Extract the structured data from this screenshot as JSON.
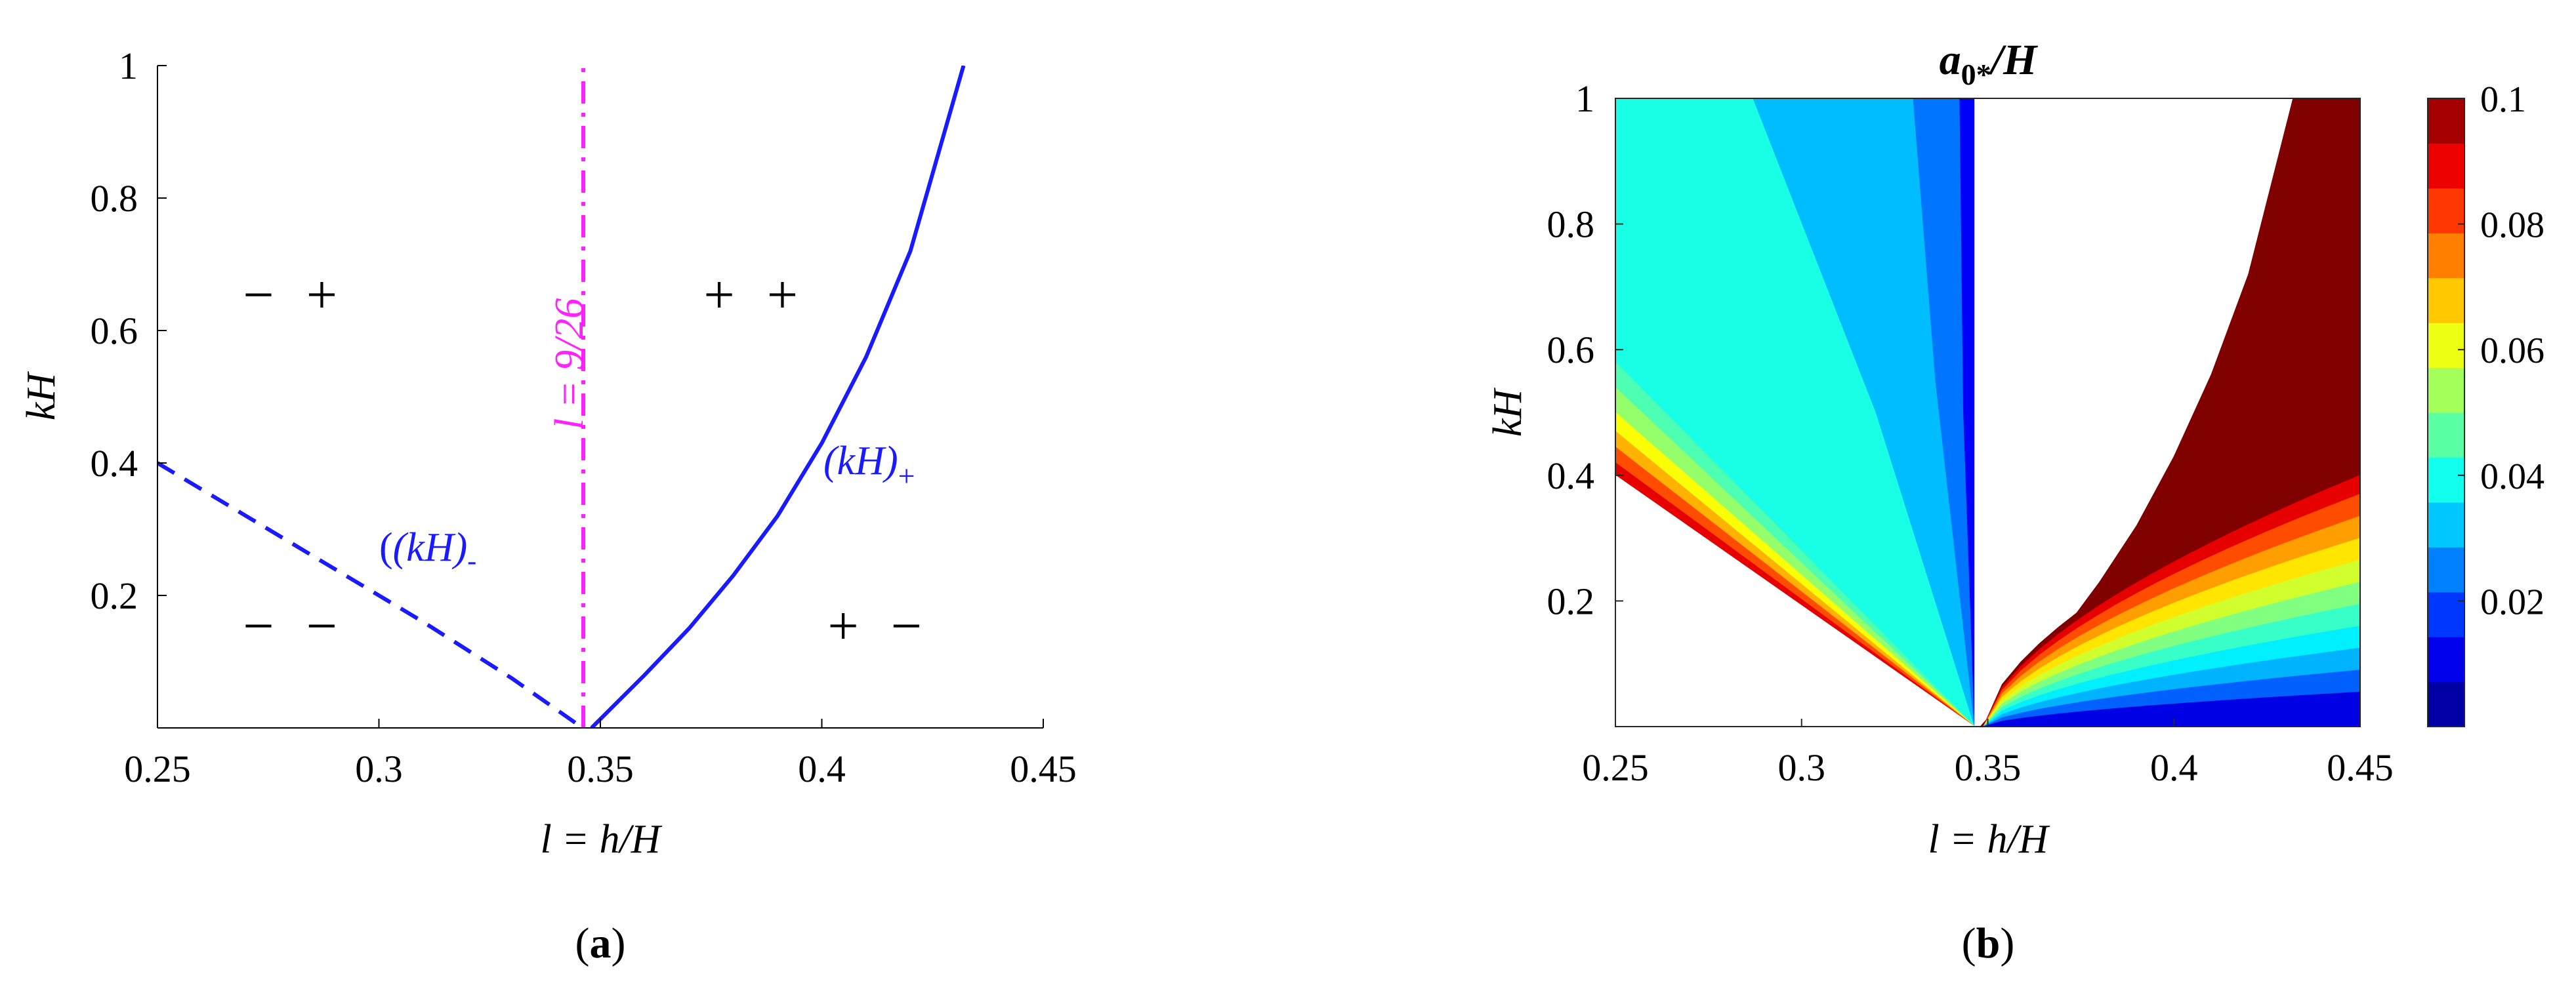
{
  "chart_data": [
    {
      "type": "line",
      "panel_label": "(a)",
      "panel_letter": "a",
      "xlabel": "l = h/H",
      "ylabel": "kH",
      "xlim": [
        0.25,
        0.45
      ],
      "ylim": [
        0,
        1
      ],
      "xticks": [
        0.25,
        0.3,
        0.35,
        0.4,
        0.45
      ],
      "xtick_labels": [
        "0.25",
        "0.3",
        "0.35",
        "0.4",
        "0.45"
      ],
      "yticks": [
        0.2,
        0.4,
        0.6,
        0.8,
        1
      ],
      "ytick_labels": [
        "0.2",
        "0.4",
        "0.6",
        "0.8",
        "1"
      ],
      "grid": false,
      "series": [
        {
          "name": "(kH)-",
          "style": "dashed",
          "color": "#1a1aff",
          "x": [
            0.25,
            0.27,
            0.29,
            0.31,
            0.33,
            0.346
          ],
          "y": [
            0.4,
            0.32,
            0.24,
            0.16,
            0.075,
            0.0
          ]
        },
        {
          "name": "(kH)+",
          "style": "solid",
          "color": "#1a1aff",
          "x": [
            0.348,
            0.36,
            0.37,
            0.38,
            0.39,
            0.4,
            0.41,
            0.42,
            0.432
          ],
          "y": [
            0.0,
            0.08,
            0.15,
            0.23,
            0.32,
            0.43,
            0.56,
            0.72,
            1.0
          ]
        },
        {
          "name": "l = 9/26",
          "style": "dashdot",
          "color": "#ff22ff",
          "x": [
            0.34615,
            0.34615
          ],
          "y": [
            0.0,
            1.0
          ]
        }
      ],
      "annotations": [
        {
          "text": "− +",
          "x": 0.281,
          "y": 0.65
        },
        {
          "text": "+ +",
          "x": 0.385,
          "y": 0.65
        },
        {
          "text": "− −",
          "x": 0.281,
          "y": 0.15
        },
        {
          "text": "+ −",
          "x": 0.413,
          "y": 0.15
        }
      ],
      "curve_labels": {
        "minus": {
          "main": "(kH)",
          "sub": "-"
        },
        "plus": {
          "main": "(kH)",
          "sub": "+"
        },
        "vline": "l = 9/26"
      }
    },
    {
      "type": "heatmap",
      "panel_label": "(b)",
      "panel_letter": "b",
      "title": "a0*/H",
      "title_parts": {
        "main": "a",
        "sub": "0*",
        "tail": "/H"
      },
      "xlabel": "l = h/H",
      "ylabel": "kH",
      "xlim": [
        0.25,
        0.45
      ],
      "ylim": [
        0,
        1
      ],
      "xticks": [
        0.25,
        0.3,
        0.35,
        0.4,
        0.45
      ],
      "xtick_labels": [
        "0.25",
        "0.3",
        "0.35",
        "0.4",
        "0.45"
      ],
      "yticks": [
        0.2,
        0.4,
        0.6,
        0.8,
        1
      ],
      "ytick_labels": [
        "0.2",
        "0.4",
        "0.6",
        "0.8",
        "1"
      ],
      "colormap": "jet",
      "colorbar": {
        "range": [
          0,
          0.1
        ],
        "ticks": [
          0.02,
          0.04,
          0.06,
          0.08,
          0.1
        ],
        "tick_labels": [
          "0.02",
          "0.04",
          "0.06",
          "0.08",
          "0.1"
        ]
      },
      "regions": [
        {
          "name": "left-dark-blue-band",
          "level": 0.012,
          "x_range": [
            0.3425,
            0.3465
          ],
          "y_range": [
            0,
            1
          ]
        },
        {
          "name": "left-blue-band",
          "level": 0.024,
          "x_range": [
            0.33,
            0.3425
          ],
          "y_range": [
            0,
            1
          ]
        },
        {
          "name": "left-sky-blue-band",
          "level": 0.031,
          "x_range": [
            0.287,
            0.33
          ],
          "y_range": [
            0,
            1
          ]
        },
        {
          "name": "left-cyan-band",
          "level": 0.04,
          "x_range": [
            0.25,
            0.287
          ],
          "y_range": [
            0.58,
            1
          ]
        },
        {
          "name": "right-dark-red-region",
          "level": 0.1,
          "x_range": [
            0.4,
            0.45
          ],
          "y_range": [
            0.43,
            1
          ]
        },
        {
          "name": "white-gap",
          "level": null,
          "x_range": [
            0.3465,
            0.41
          ],
          "y_range": [
            0,
            1
          ]
        }
      ]
    }
  ]
}
